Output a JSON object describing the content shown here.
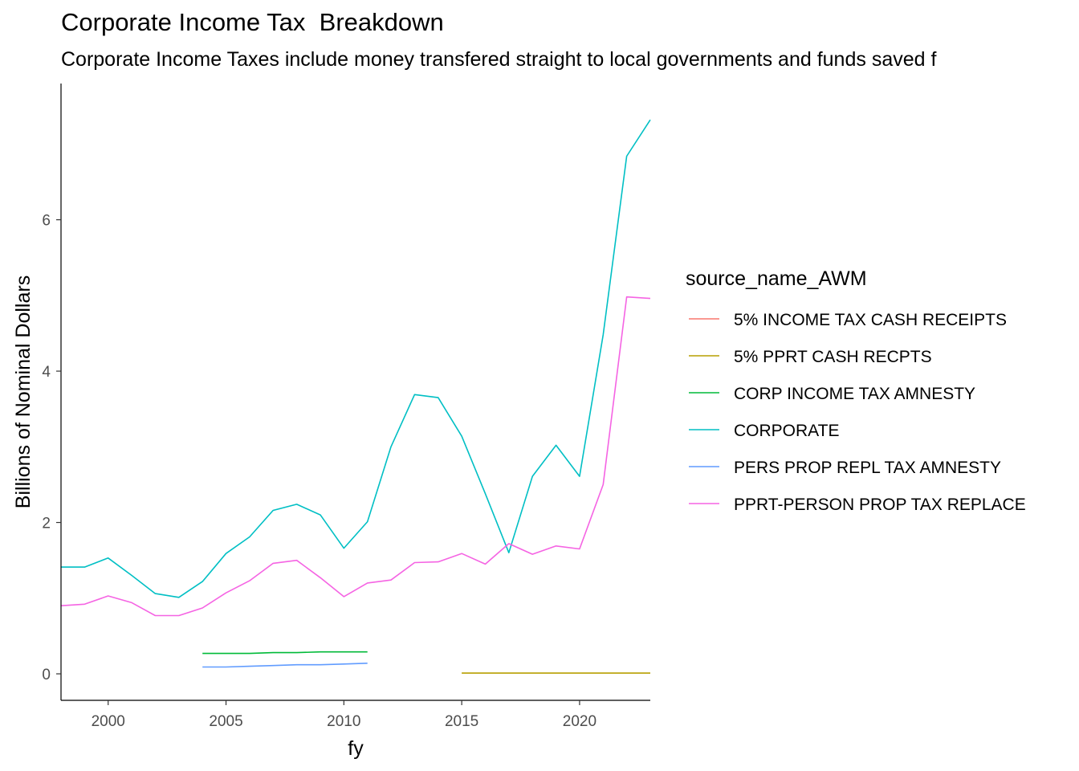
{
  "chart_data": {
    "type": "line",
    "title": "Corporate Income Tax  Breakdown",
    "subtitle": "Corporate Income Taxes include money transfered straight to local governments and funds saved f",
    "xlabel": "fy",
    "ylabel": "Billions of Nominal Dollars",
    "xlim": [
      1998,
      2023
    ],
    "ylim": [
      -0.35,
      7.8
    ],
    "x_ticks": [
      2000,
      2005,
      2010,
      2015,
      2020
    ],
    "y_ticks": [
      0,
      2,
      4,
      6
    ],
    "grid": false,
    "legend": {
      "title": "source_name_AWM",
      "placement": "right"
    },
    "series": [
      {
        "name": "5% INCOME TAX CASH RECEIPTS",
        "color": "#F8766D",
        "x": [],
        "values": []
      },
      {
        "name": "5% PPRT CASH RECPTS",
        "color": "#B79F00",
        "x": [
          2015,
          2016,
          2017,
          2018,
          2019,
          2020,
          2021,
          2022,
          2023
        ],
        "values": [
          0.01,
          0.01,
          0.01,
          0.01,
          0.01,
          0.01,
          0.01,
          0.01,
          0.01
        ]
      },
      {
        "name": "CORP INCOME TAX AMNESTY",
        "color": "#00BA38",
        "x": [
          2004,
          2005,
          2006,
          2007,
          2008,
          2009,
          2010,
          2011
        ],
        "values": [
          0.27,
          0.27,
          0.27,
          0.28,
          0.28,
          0.29,
          0.29,
          0.29
        ]
      },
      {
        "name": "CORPORATE",
        "color": "#00BFC4",
        "x": [
          1998,
          1999,
          2000,
          2001,
          2002,
          2003,
          2004,
          2005,
          2006,
          2007,
          2008,
          2009,
          2010,
          2011,
          2012,
          2013,
          2014,
          2015,
          2016,
          2017,
          2018,
          2019,
          2020,
          2021,
          2022,
          2023
        ],
        "values": [
          1.41,
          1.41,
          1.53,
          1.3,
          1.06,
          1.01,
          1.22,
          1.59,
          1.81,
          2.16,
          2.24,
          2.1,
          1.66,
          2.01,
          3.0,
          3.69,
          3.65,
          3.14,
          2.38,
          1.6,
          2.61,
          3.02,
          2.61,
          4.48,
          6.84,
          7.32
        ]
      },
      {
        "name": "PERS PROP REPL TAX AMNESTY",
        "color": "#619CFF",
        "x": [
          2004,
          2005,
          2006,
          2007,
          2008,
          2009,
          2010,
          2011
        ],
        "values": [
          0.09,
          0.09,
          0.1,
          0.11,
          0.12,
          0.12,
          0.13,
          0.14
        ]
      },
      {
        "name": "PPRT-PERSON PROP TAX REPLACE",
        "color": "#F564E3",
        "x": [
          1998,
          1999,
          2000,
          2001,
          2002,
          2003,
          2004,
          2005,
          2006,
          2007,
          2008,
          2009,
          2010,
          2011,
          2012,
          2013,
          2014,
          2015,
          2016,
          2017,
          2018,
          2019,
          2020,
          2021,
          2022,
          2023
        ],
        "values": [
          0.9,
          0.92,
          1.03,
          0.94,
          0.77,
          0.77,
          0.87,
          1.07,
          1.23,
          1.46,
          1.5,
          1.27,
          1.02,
          1.2,
          1.24,
          1.47,
          1.48,
          1.59,
          1.45,
          1.72,
          1.58,
          1.69,
          1.65,
          2.5,
          4.98,
          4.96
        ]
      }
    ]
  }
}
